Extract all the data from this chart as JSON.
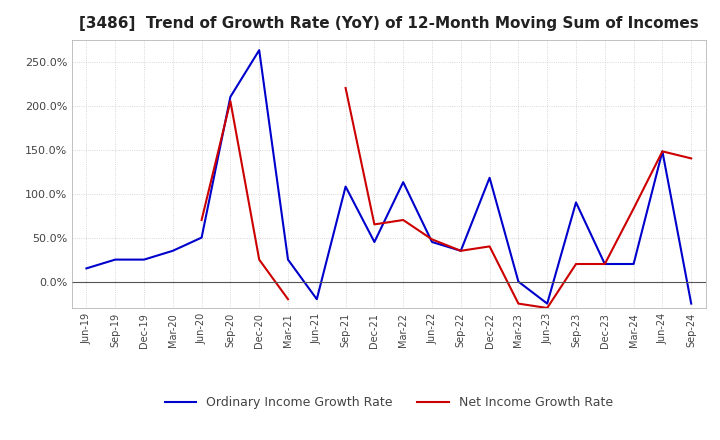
{
  "title": "[3486]  Trend of Growth Rate (YoY) of 12-Month Moving Sum of Incomes",
  "title_fontsize": 11,
  "background_color": "#ffffff",
  "plot_bg_color": "#ffffff",
  "grid_color": "#cccccc",
  "ylim": [
    -30,
    275
  ],
  "yticks": [
    0,
    50,
    100,
    150,
    200,
    250
  ],
  "ytick_labels": [
    "0.0%",
    "50.0%",
    "100.0%",
    "150.0%",
    "200.0%",
    "250.0%"
  ],
  "x_labels": [
    "Jun-19",
    "Sep-19",
    "Dec-19",
    "Mar-20",
    "Jun-20",
    "Sep-20",
    "Dec-20",
    "Mar-21",
    "Jun-21",
    "Sep-21",
    "Dec-21",
    "Mar-22",
    "Jun-22",
    "Sep-22",
    "Dec-22",
    "Mar-23",
    "Jun-23",
    "Sep-23",
    "Dec-23",
    "Mar-24",
    "Jun-24",
    "Sep-24"
  ],
  "ordinary_income": [
    15,
    25,
    25,
    35,
    50,
    210,
    263,
    25,
    -20,
    108,
    45,
    113,
    45,
    35,
    118,
    0,
    -25,
    90,
    20,
    20,
    148,
    -25
  ],
  "net_income": [
    null,
    null,
    null,
    null,
    70,
    205,
    25,
    -20,
    null,
    220,
    65,
    70,
    48,
    35,
    40,
    -25,
    -30,
    20,
    20,
    83,
    148,
    140
  ],
  "ordinary_color": "#0000cc",
  "net_color": "#cc0000",
  "line_width": 1.5,
  "legend_ordinary": "Ordinary Income Growth Rate",
  "legend_net": "Net Income Growth Rate"
}
